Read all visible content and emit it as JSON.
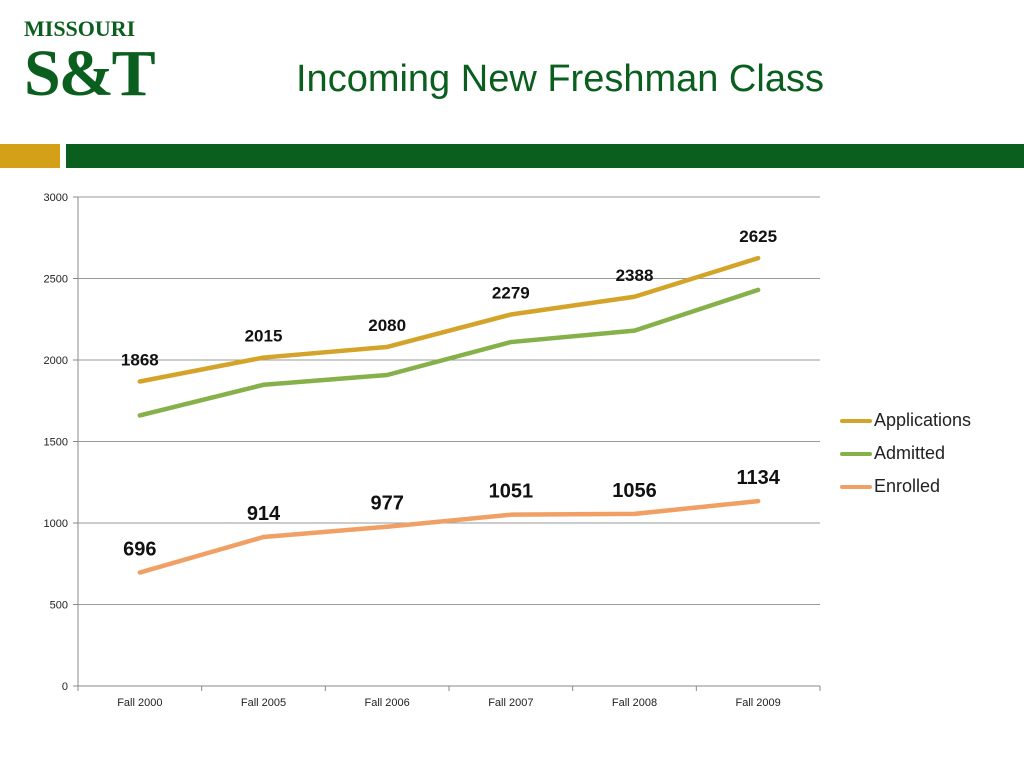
{
  "header": {
    "logo_text_top": "MISSOURI",
    "logo_text_main": "S&T",
    "title": "Incoming New Freshman Class"
  },
  "colors": {
    "brand_green": "#0b5f1e",
    "brand_gold": "#d4a017",
    "applications": "#d4a32a",
    "admitted": "#86b04a",
    "enrolled": "#f0a064",
    "grid": "#9a9a9a"
  },
  "chart_data": {
    "type": "line",
    "title": "",
    "xlabel": "",
    "ylabel": "",
    "categories": [
      "Fall 2000",
      "Fall 2005",
      "Fall 2006",
      "Fall 2007",
      "Fall 2008",
      "Fall 2009"
    ],
    "ylim": [
      0,
      3000
    ],
    "yticks": [
      0,
      500,
      1000,
      1500,
      2000,
      2500,
      3000
    ],
    "grid": true,
    "legend_position": "right",
    "series": [
      {
        "name": "Applications",
        "color": "#d4a32a",
        "values": [
          1868,
          2015,
          2080,
          2279,
          2388,
          2625
        ],
        "labels": true
      },
      {
        "name": "Admitted",
        "color": "#86b04a",
        "values": [
          1660,
          1848,
          1908,
          2110,
          2180,
          2430
        ],
        "labels": false
      },
      {
        "name": "Enrolled",
        "color": "#f0a064",
        "values": [
          696,
          914,
          977,
          1051,
          1056,
          1134
        ],
        "labels": true
      }
    ]
  }
}
